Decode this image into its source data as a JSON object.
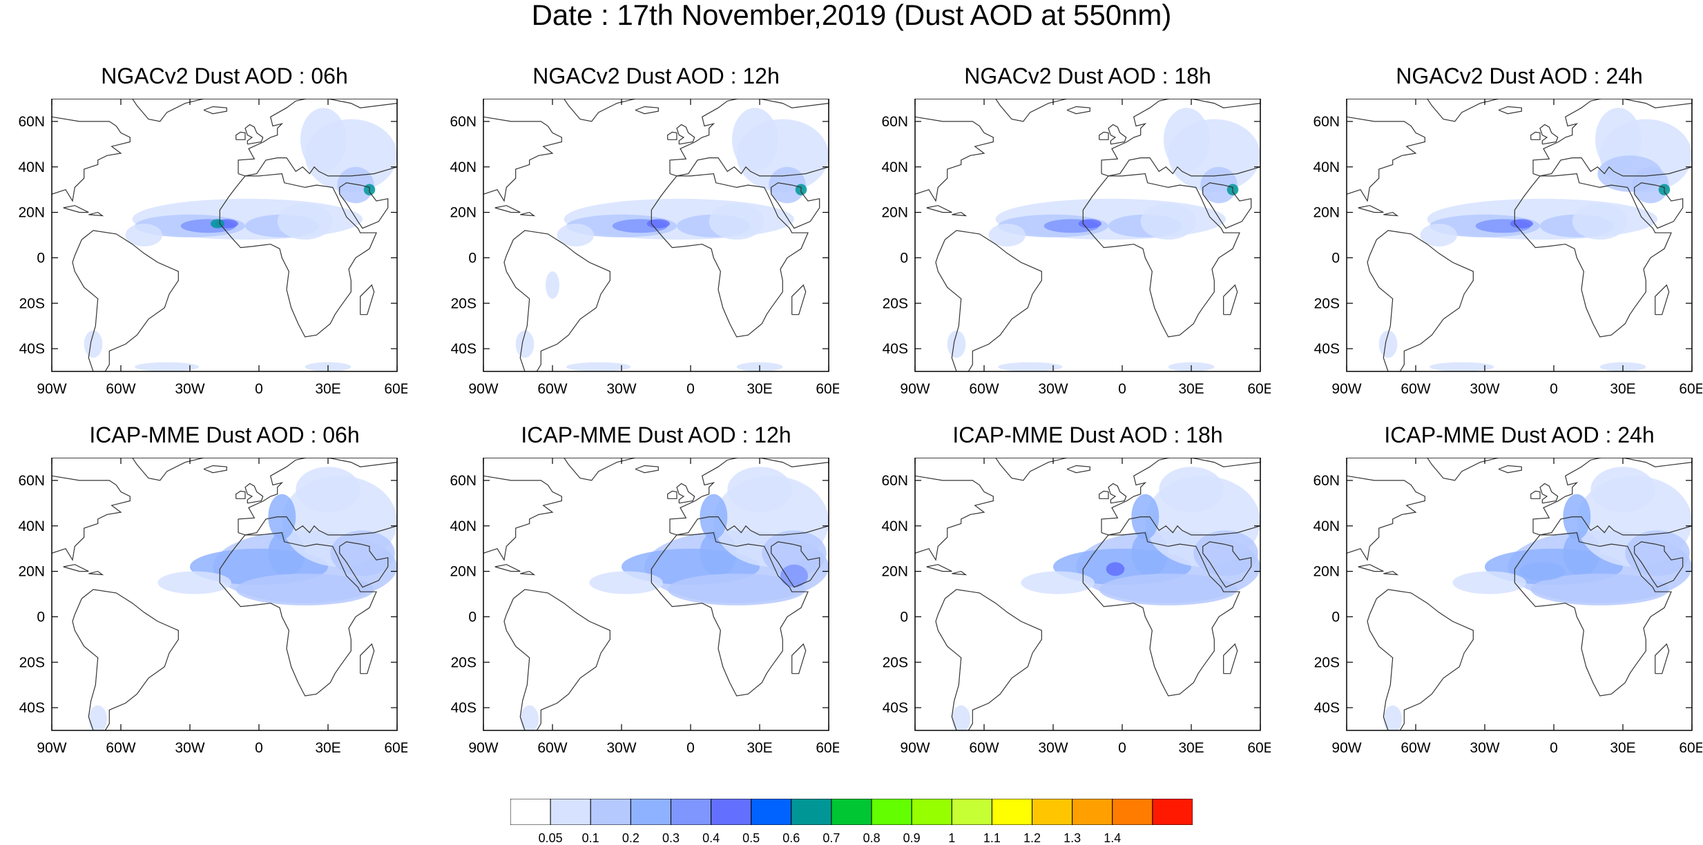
{
  "title": "Date : 17th November,2019 (Dust AOD at 550nm)",
  "panels": [
    {
      "title": "NGACv2 Dust AOD : 06h",
      "model": "NGACv2",
      "hour": "06h"
    },
    {
      "title": "NGACv2 Dust AOD : 12h",
      "model": "NGACv2",
      "hour": "12h"
    },
    {
      "title": "NGACv2 Dust AOD : 18h",
      "model": "NGACv2",
      "hour": "18h"
    },
    {
      "title": "NGACv2 Dust AOD : 24h",
      "model": "NGACv2",
      "hour": "24h"
    },
    {
      "title": "ICAP-MME Dust AOD : 06h",
      "model": "ICAP-MME",
      "hour": "06h"
    },
    {
      "title": "ICAP-MME Dust AOD : 12h",
      "model": "ICAP-MME",
      "hour": "12h"
    },
    {
      "title": "ICAP-MME Dust AOD : 18h",
      "model": "ICAP-MME",
      "hour": "18h"
    },
    {
      "title": "ICAP-MME Dust AOD : 24h",
      "model": "ICAP-MME",
      "hour": "24h"
    }
  ],
  "map_extent": {
    "lon": [
      -90,
      60
    ],
    "lat": [
      -50,
      70
    ]
  },
  "lon_ticks": [
    {
      "value": -90,
      "label": "90W"
    },
    {
      "value": -60,
      "label": "60W"
    },
    {
      "value": -30,
      "label": "30W"
    },
    {
      "value": 0,
      "label": "0"
    },
    {
      "value": 30,
      "label": "30E"
    },
    {
      "value": 60,
      "label": "60E"
    }
  ],
  "lat_ticks": [
    {
      "value": 60,
      "label": "60N"
    },
    {
      "value": 40,
      "label": "40N"
    },
    {
      "value": 20,
      "label": "20N"
    },
    {
      "value": 0,
      "label": "0"
    },
    {
      "value": -20,
      "label": "20S"
    },
    {
      "value": -40,
      "label": "40S"
    }
  ],
  "colorbar": {
    "levels": [
      "0.05",
      "0.1",
      "0.2",
      "0.3",
      "0.4",
      "0.5",
      "0.6",
      "0.7",
      "0.8",
      "0.9",
      "1",
      "1.1",
      "1.2",
      "1.3",
      "1.4"
    ],
    "colors": [
      "#ffffff",
      "#d6e2ff",
      "#b5c9ff",
      "#8eb2ff",
      "#7f96ff",
      "#6370ff",
      "#0063ff",
      "#009696",
      "#00c633",
      "#63ff00",
      "#96ff00",
      "#c6ff33",
      "#ffff00",
      "#ffc600",
      "#ffa000",
      "#ff7c00",
      "#ff1900"
    ]
  }
}
